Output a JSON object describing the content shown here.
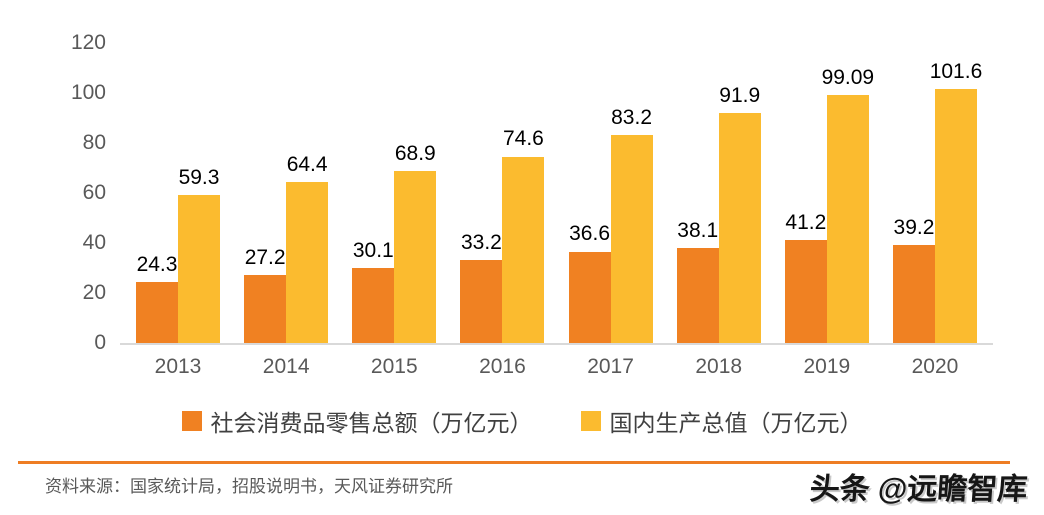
{
  "chart_data": {
    "type": "bar",
    "categories": [
      "2013",
      "2014",
      "2015",
      "2016",
      "2017",
      "2018",
      "2019",
      "2020"
    ],
    "series": [
      {
        "name": "社会消费品零售总额（万亿元）",
        "color": "#F08122",
        "values": [
          24.3,
          27.2,
          30.1,
          33.2,
          36.6,
          38.1,
          41.2,
          39.2
        ],
        "data_labels": [
          "24.3",
          "27.2",
          "30.1",
          "33.2",
          "36.6",
          "38.1",
          "41.2",
          "39.2"
        ]
      },
      {
        "name": "国内生产总值（万亿元）",
        "color": "#FBBB2F",
        "values": [
          59.3,
          64.4,
          68.9,
          74.6,
          83.2,
          91.9,
          99.09,
          101.6
        ],
        "data_labels": [
          "59.3",
          "64.4",
          "68.9",
          "74.6",
          "83.2",
          "91.9",
          "99.09",
          "101.6"
        ]
      }
    ],
    "title": "",
    "xlabel": "",
    "ylabel": "",
    "ylim": [
      0,
      120
    ],
    "yticks": [
      0,
      20,
      40,
      60,
      80,
      100,
      120
    ],
    "grid": false,
    "legend_position": "bottom"
  },
  "footer": {
    "source_label": "资料来源：国家统计局，招股说明书，天风证券研究所",
    "watermark": "头条 @远瞻智库"
  },
  "style": {
    "background": "#FFFFFF",
    "axis_line_color": "#D9D9D9",
    "tick_label_color": "#595959",
    "data_label_color": "#000000",
    "legend_text_color": "#404040",
    "source_text_color": "#595959",
    "divider_color": "#EE7D23"
  }
}
